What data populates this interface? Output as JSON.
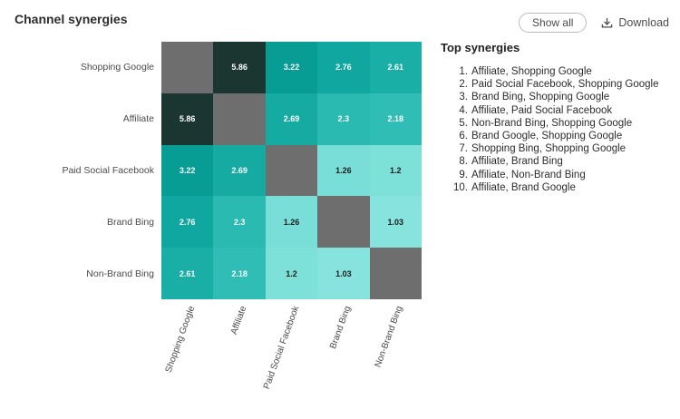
{
  "header": {
    "title": "Channel synergies",
    "show_all_label": "Show all",
    "download_label": "Download",
    "download_icon": "download-arrow-into-tray"
  },
  "panel": {
    "title": "Top synergies",
    "items": [
      "Affiliate, Shopping Google",
      "Paid Social Facebook, Shopping Google",
      "Brand Bing, Shopping Google",
      "Affiliate, Paid Social Facebook",
      "Non-Brand Bing, Shopping Google",
      "Brand Google, Shopping Google",
      "Shopping Bing, Shopping Google",
      "Affiliate, Brand Bing",
      "Affiliate, Non-Brand Bing",
      "Affiliate, Brand Google"
    ]
  },
  "chart_data": {
    "type": "heatmap",
    "title": "Channel synergies",
    "labels": [
      "Shopping Google",
      "Affiliate",
      "Paid Social Facebook",
      "Brand Bing",
      "Non-Brand Bing"
    ],
    "matrix": [
      [
        null,
        5.86,
        3.22,
        2.76,
        2.61
      ],
      [
        5.86,
        null,
        2.69,
        2.3,
        2.18
      ],
      [
        3.22,
        2.69,
        null,
        1.26,
        1.2
      ],
      [
        2.76,
        2.3,
        1.26,
        null,
        1.03
      ],
      [
        2.61,
        2.18,
        1.2,
        1.03,
        null
      ]
    ],
    "diagonal_color": "#6e6e6e",
    "color_scale": {
      "5.86": "#1b3531",
      "3.22": "#079d95",
      "2.76": "#0fa79f",
      "2.69": "#15aba3",
      "2.61": "#19aea6",
      "2.3": "#2abab1",
      "2.18": "#2fbdb5",
      "1.26": "#79ded7",
      "1.2": "#7de0d9",
      "1.03": "#87e3dd"
    },
    "legend": "none",
    "grid": "off"
  }
}
